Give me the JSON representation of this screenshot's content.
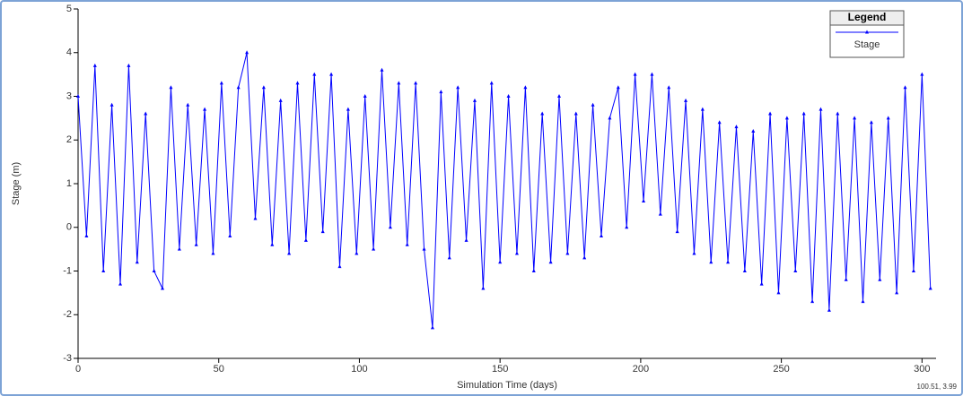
{
  "chart_data": {
    "type": "line",
    "y_label": "Stage (m)",
    "x_label": "Simulation Time (days)",
    "legend_title": "Legend",
    "legend_position": "upper right",
    "cursor_readout": "100.51, 3.99",
    "xlim": [
      0,
      305
    ],
    "xticks": [
      0,
      50,
      100,
      150,
      200,
      250,
      300
    ],
    "ylim": [
      -3,
      5
    ],
    "yticks": [
      -3,
      -2,
      -1,
      0,
      1,
      2,
      3,
      4,
      5
    ],
    "x": [
      0,
      3,
      6,
      9,
      12,
      15,
      18,
      21,
      24,
      27,
      30,
      33,
      36,
      39,
      42,
      45,
      48,
      51,
      54,
      57,
      60,
      63,
      66,
      69,
      72,
      75,
      78,
      81,
      84,
      87,
      90,
      93,
      96,
      99,
      102,
      105,
      108,
      111,
      114,
      117,
      120,
      123,
      126,
      129,
      132,
      135,
      138,
      141,
      144,
      147,
      150,
      153,
      156,
      159,
      162,
      165,
      168,
      171,
      174,
      177,
      180,
      183,
      186,
      189,
      192,
      195,
      198,
      201,
      204,
      207,
      210,
      213,
      216,
      219,
      222,
      225,
      228,
      231,
      234,
      237,
      240,
      243,
      246,
      249,
      252,
      255,
      258,
      261,
      264,
      267,
      270,
      273,
      276,
      279,
      282,
      285,
      288,
      291,
      294,
      297,
      300,
      303
    ],
    "series": [
      {
        "name": "Stage",
        "color": "#0000ff",
        "values": [
          3.0,
          -0.2,
          3.7,
          -1.0,
          2.8,
          -1.3,
          3.7,
          -0.8,
          2.6,
          -1.0,
          -1.4,
          3.2,
          -0.5,
          2.8,
          -0.4,
          2.7,
          -0.6,
          3.3,
          -0.2,
          3.2,
          4.0,
          0.2,
          3.2,
          -0.4,
          2.9,
          -0.6,
          3.3,
          -0.3,
          3.5,
          -0.1,
          3.5,
          -0.9,
          2.7,
          -0.6,
          3.0,
          -0.5,
          3.6,
          0.0,
          3.3,
          -0.4,
          3.3,
          -0.5,
          -2.3,
          3.1,
          -0.7,
          3.2,
          -0.3,
          2.9,
          -1.4,
          3.3,
          -0.8,
          3.0,
          -0.6,
          3.2,
          -1.0,
          2.6,
          -0.8,
          3.0,
          -0.6,
          2.6,
          -0.7,
          2.8,
          -0.2,
          2.5,
          3.2,
          0.0,
          3.5,
          0.6,
          3.5,
          0.3,
          3.2,
          -0.1,
          2.9,
          -0.6,
          2.7,
          -0.8,
          2.4,
          -0.8,
          2.3,
          -1.0,
          2.2,
          -1.3,
          2.6,
          -1.5,
          2.5,
          -1.0,
          2.6,
          -1.7,
          2.7,
          -1.9,
          2.6,
          -1.2,
          2.5,
          -1.7,
          2.4,
          -1.2,
          2.5,
          -1.5,
          3.2,
          -1.0,
          3.5,
          -1.4
        ]
      }
    ]
  }
}
